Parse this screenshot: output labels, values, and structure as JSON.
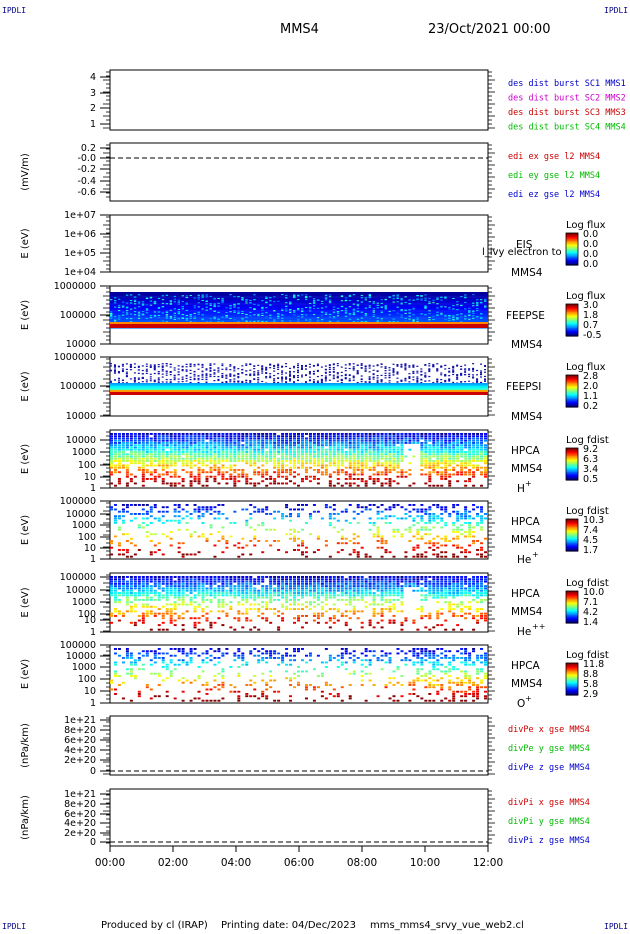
{
  "header": {
    "corner_tag": "IPDLI",
    "spacecraft": "MMS4",
    "datetime": "23/Oct/2021 00:00"
  },
  "footer": {
    "produced_by": "Produced by cl (IRAP)",
    "printing_date": "Printing date: 04/Dec/2023",
    "script_name": "mms_mms4_srvy_vue_web2.cl"
  },
  "colors": {
    "blue": "#0000cc",
    "magenta": "#cc00cc",
    "red": "#cc0000",
    "green": "#00bb00",
    "black": "#000000"
  },
  "chart_data": [
    {
      "id": "des-dist",
      "type": "line",
      "ylabel": "",
      "ticks": [
        "4",
        "3",
        "2",
        "1"
      ],
      "legend": [
        {
          "name": "des dist burst SC1 MMS1",
          "color": "blue"
        },
        {
          "name": "des dist burst SC2 MMS2",
          "color": "magenta"
        },
        {
          "name": "des dist burst SC3 MMS3",
          "color": "red"
        },
        {
          "name": "des dist burst SC4 MMS4",
          "color": "green"
        }
      ]
    },
    {
      "id": "edi",
      "type": "line",
      "ylabel": "(mV/m)",
      "ticks": [
        "0.2",
        "-0.0",
        "-0.2",
        "-0.4",
        "-0.6"
      ],
      "zero_line": true,
      "legend": [
        {
          "name": "edi ex gse l2 MMS4",
          "color": "red"
        },
        {
          "name": "edi ey gse l2 MMS4",
          "color": "green"
        },
        {
          "name": "edi ez gse l2 MMS4",
          "color": "blue"
        }
      ]
    },
    {
      "id": "eis",
      "type": "heatmap",
      "ylabel": "E (eV)",
      "ticks": [
        "1e+07",
        "1e+06",
        "1e+05",
        "1e+04"
      ],
      "labels": [
        "EIS",
        "MMS4"
      ],
      "overlay_text": "l_lvy electron to",
      "colorbar": {
        "title": "Log flux",
        "values": [
          "0.0",
          "0.0",
          "0.0",
          "0.0"
        ]
      }
    },
    {
      "id": "feeps-e",
      "type": "heatmap",
      "ylabel": "E (eV)",
      "ticks": [
        "1000000",
        "100000",
        "10000"
      ],
      "labels": [
        "FEEPSE",
        "MMS4"
      ],
      "colorbar": {
        "title": "Log flux",
        "values": [
          "3.0",
          "1.8",
          "0.7",
          "-0.5"
        ]
      }
    },
    {
      "id": "feeps-i",
      "type": "heatmap",
      "ylabel": "E (eV)",
      "ticks": [
        "1000000",
        "100000",
        "10000"
      ],
      "labels": [
        "FEEPSI",
        "MMS4"
      ],
      "colorbar": {
        "title": "Log flux",
        "values": [
          "2.8",
          "2.0",
          "1.1",
          "0.2"
        ]
      }
    },
    {
      "id": "hpca-h",
      "type": "heatmap",
      "ylabel": "E (eV)",
      "ticks": [
        "10000",
        "1000",
        "100",
        "10",
        "1"
      ],
      "labels": [
        "HPCA",
        "MMS4"
      ],
      "species": "H",
      "charge": "+",
      "colorbar": {
        "title": "Log fdist",
        "values": [
          "9.2",
          "6.3",
          "3.4",
          "0.5"
        ]
      }
    },
    {
      "id": "hpca-he",
      "type": "heatmap",
      "ylabel": "E (eV)",
      "ticks": [
        "100000",
        "10000",
        "1000",
        "100",
        "10",
        "1"
      ],
      "labels": [
        "HPCA",
        "MMS4"
      ],
      "species": "He",
      "charge": "+",
      "colorbar": {
        "title": "Log fdist",
        "values": [
          "10.3",
          "7.4",
          "4.5",
          "1.7"
        ]
      }
    },
    {
      "id": "hpca-he2",
      "type": "heatmap",
      "ylabel": "E (eV)",
      "ticks": [
        "100000",
        "10000",
        "1000",
        "100",
        "10",
        "1"
      ],
      "labels": [
        "HPCA",
        "MMS4"
      ],
      "species": "He",
      "charge": "++",
      "colorbar": {
        "title": "Log fdist",
        "values": [
          "10.0",
          "7.1",
          "4.2",
          "1.4"
        ]
      }
    },
    {
      "id": "hpca-o",
      "type": "heatmap",
      "ylabel": "E (eV)",
      "ticks": [
        "100000",
        "10000",
        "1000",
        "100",
        "10",
        "1"
      ],
      "labels": [
        "HPCA",
        "MMS4"
      ],
      "species": "O",
      "charge": "+",
      "colorbar": {
        "title": "Log fdist",
        "values": [
          "11.8",
          "8.8",
          "5.8",
          "2.9"
        ]
      }
    },
    {
      "id": "divpe",
      "type": "line",
      "ylabel": "(nPa/km)",
      "ticks": [
        "1e+21",
        "8e+20",
        "6e+20",
        "4e+20",
        "2e+20",
        "0"
      ],
      "zero_line": true,
      "legend": [
        {
          "name": "divPe x gse MMS4",
          "color": "red"
        },
        {
          "name": "divPe y gse MMS4",
          "color": "green"
        },
        {
          "name": "divPe z gse MMS4",
          "color": "blue"
        }
      ]
    },
    {
      "id": "divpi",
      "type": "line",
      "ylabel": "(nPa/km)",
      "ticks": [
        "1e+21",
        "8e+20",
        "6e+20",
        "4e+20",
        "2e+20",
        "0"
      ],
      "zero_line": true,
      "legend": [
        {
          "name": "divPi x gse MMS4",
          "color": "red"
        },
        {
          "name": "divPi y gse MMS4",
          "color": "green"
        },
        {
          "name": "divPi z gse MMS4",
          "color": "blue"
        }
      ]
    }
  ],
  "x_axis": {
    "ticks": [
      "00:00",
      "02:00",
      "04:00",
      "06:00",
      "08:00",
      "10:00",
      "12:00"
    ]
  }
}
